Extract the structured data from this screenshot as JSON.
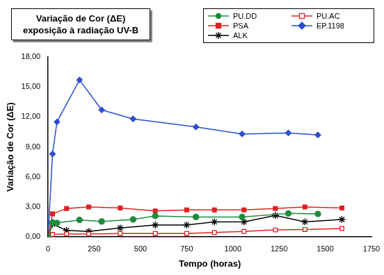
{
  "chart_data": {
    "type": "line",
    "title": [
      "Variação de Cor (ΔE)",
      "exposição à radiação UV-B"
    ],
    "x_label": "Tempo (horas)",
    "y_label": "Variação de Cor (ΔE)",
    "xlim": [
      0,
      1750
    ],
    "xticks": [
      0,
      250,
      500,
      750,
      1000,
      1250,
      1500,
      1750
    ],
    "ylim": [
      0,
      18
    ],
    "yticks": [
      {
        "value": 0,
        "label": "0,00"
      },
      {
        "value": 3,
        "label": "3,00"
      },
      {
        "value": 6,
        "label": "6,00"
      },
      {
        "value": 9,
        "label": "9,00"
      },
      {
        "value": 12,
        "label": "12,00"
      },
      {
        "value": 15,
        "label": "15,00"
      },
      {
        "value": 18,
        "label": "18,00"
      }
    ],
    "grid": false,
    "legend": "top right",
    "series": [
      {
        "name": "PU.DD",
        "color": "#1e8c3c",
        "marker": "circle",
        "line_style": "solid",
        "x": [
          0,
          24,
          48,
          170,
          290,
          460,
          580,
          800,
          1050,
          1300,
          1460
        ],
        "values": [
          0,
          1.45,
          1.4,
          1.7,
          1.55,
          1.75,
          2.1,
          2.0,
          2.0,
          2.35,
          2.3
        ]
      },
      {
        "name": "PU.AC",
        "color": "#e02020",
        "marker": "open-square",
        "line_style": "solid",
        "x": [
          0,
          24,
          100,
          220,
          390,
          580,
          750,
          900,
          1060,
          1230,
          1390,
          1590
        ],
        "values": [
          0,
          0.25,
          0.3,
          0.3,
          0.35,
          0.35,
          0.35,
          0.45,
          0.55,
          0.7,
          0.75,
          0.85
        ]
      },
      {
        "name": "PSA",
        "color": "#e02020",
        "marker": "square",
        "line_style": "solid",
        "x": [
          0,
          24,
          100,
          220,
          390,
          580,
          750,
          900,
          1060,
          1230,
          1390,
          1590
        ],
        "values": [
          0,
          2.3,
          2.85,
          3.0,
          2.9,
          2.6,
          2.7,
          2.7,
          2.7,
          2.85,
          3.0,
          2.9
        ]
      },
      {
        "name": "EP.1198",
        "color": "#2a4fcf",
        "marker": "diamond",
        "line_style": "solid",
        "x": [
          0,
          24,
          48,
          170,
          290,
          460,
          800,
          1050,
          1300,
          1460
        ],
        "values": [
          0,
          8.3,
          11.5,
          15.7,
          12.7,
          11.8,
          11.0,
          10.3,
          10.4,
          10.2
        ]
      },
      {
        "name": "ALK",
        "color": "#000000",
        "marker": "star",
        "line_style": "solid",
        "x": [
          0,
          24,
          100,
          220,
          390,
          580,
          750,
          900,
          1060,
          1230,
          1390,
          1590
        ],
        "values": [
          0,
          1.3,
          0.65,
          0.55,
          0.9,
          1.2,
          1.2,
          1.5,
          1.5,
          2.15,
          1.5,
          1.75
        ]
      }
    ]
  }
}
